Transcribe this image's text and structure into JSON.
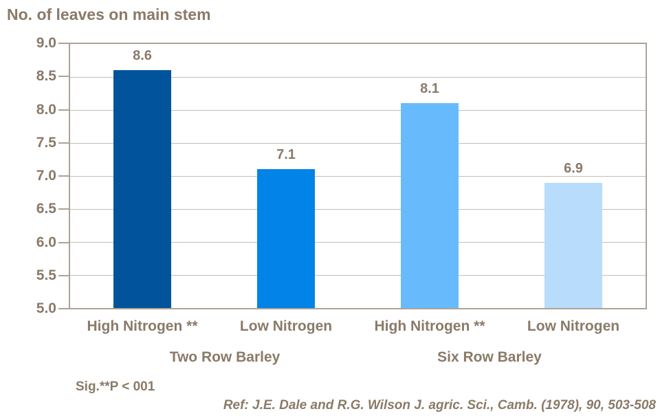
{
  "chart_data": {
    "type": "bar",
    "title": "No. of leaves on main stem",
    "categories": [
      "High Nitrogen **",
      "Low Nitrogen",
      "High Nitrogen **",
      "Low Nitrogen"
    ],
    "values": [
      8.6,
      7.1,
      8.1,
      6.9
    ],
    "value_labels": [
      "8.6",
      "7.1",
      "8.1",
      "6.9"
    ],
    "bar_colors": [
      "#01549B",
      "#0183E8",
      "#67BBFC",
      "#B8DCFB"
    ],
    "groups": [
      {
        "label": "Two Row Barley",
        "categories": [
          "High Nitrogen **",
          "Low Nitrogen"
        ]
      },
      {
        "label": "Six Row Barley",
        "categories": [
          "High Nitrogen **",
          "Low Nitrogen"
        ]
      }
    ],
    "ylim": [
      5.0,
      9.0
    ],
    "ytick_step": 0.5,
    "ytick_labels": [
      "5.0",
      "5.5",
      "6.0",
      "6.5",
      "7.0",
      "7.5",
      "8.0",
      "8.5",
      "9.0"
    ],
    "grid": true,
    "legend": "none",
    "xlabel": "",
    "ylabel": ""
  },
  "footnotes": {
    "significance": "Sig.**P < 001",
    "reference": "Ref: J.E. Dale and R.G. Wilson J. agric. Sci., Camb. (1978), 90, 503-508"
  },
  "colors": {
    "text": "#8A7A68",
    "axis": "#ACA296",
    "gridline": "#C6BDB3",
    "background": "#FFFFFF"
  }
}
